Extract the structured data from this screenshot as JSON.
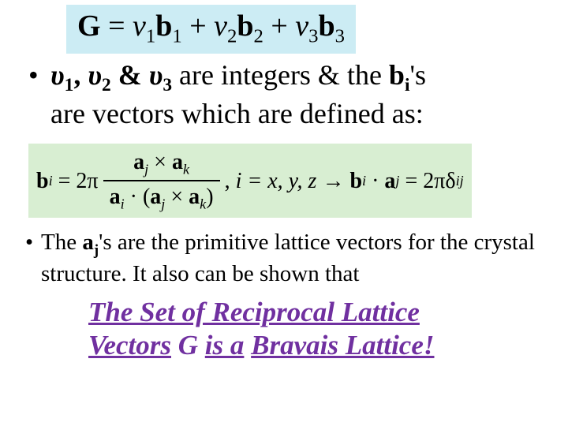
{
  "colors": {
    "eq1_bg": "#ccecf4",
    "eq2_bg": "#d8eed2",
    "conclusion_color": "#7030a0",
    "body_bg": "#ffffff",
    "text": "#000000"
  },
  "typography": {
    "base_font": "Times New Roman",
    "eq1_fontsize": 38,
    "bullet1_fontsize": 36,
    "eq2_fontsize": 28,
    "bullet2_fontsize": 29,
    "conclusion_fontsize": 35
  },
  "eq1": {
    "G": "G",
    "eq": " = ",
    "v1": "v",
    "v1sub": "1",
    "b1": "b",
    "b1sub": "1",
    "plus1": " + ",
    "v2": "v",
    "v2sub": "2",
    "b2": "b",
    "b2sub": "2",
    "plus2": " + ",
    "v3": "v",
    "v3sub": "3",
    "b3": "b",
    "b3sub": "3"
  },
  "bullet1": {
    "u1": "υ",
    "u1sub": "1",
    "c1": ", ",
    "u2": "υ",
    "u2sub": "2",
    "amp": " & ",
    "u3": "υ",
    "u3sub": "3",
    "t1": " are integers & the ",
    "bi": "b",
    "bisub": "i",
    "t2": "'s",
    "line2": "are vectors which are defined as:"
  },
  "eq2": {
    "bi": "b",
    "bisub": "i",
    "eq": " = 2π",
    "num_pre": "a",
    "num_sub1": "j",
    "times": " × ",
    "num_post": "a",
    "num_sub2": "k",
    "den_pre": "a",
    "den_sub1": "i",
    "dot": " · (",
    "den_mid": "a",
    "den_sub2": "j",
    "times2": " × ",
    "den_post": "a",
    "den_sub3": "k",
    "close": ")",
    "comma": ",  ",
    "idx": "i = x, y, z",
    "arrow": " → ",
    "rhs_bi": "b",
    "rhs_bisub": "i",
    "rhs_dot": " · ",
    "rhs_aj": "a",
    "rhs_ajsub": "j",
    "rhs_eq": " = 2πδ",
    "rhs_delta_sub": "ij"
  },
  "bullet2": {
    "t1": "The ",
    "aj": "a",
    "ajsub": "j",
    "t2": "'s are the primitive lattice vectors for the crystal structure. It also can be shown that"
  },
  "conclusion": {
    "l1a": "The Set of Reciprocal Lattice",
    "l2a": "Vectors",
    "l2b": " G ",
    "l2c": "is a",
    "l2d": " Bravais Lattice!",
    "l2d_text": "Bravais Lattice!"
  }
}
